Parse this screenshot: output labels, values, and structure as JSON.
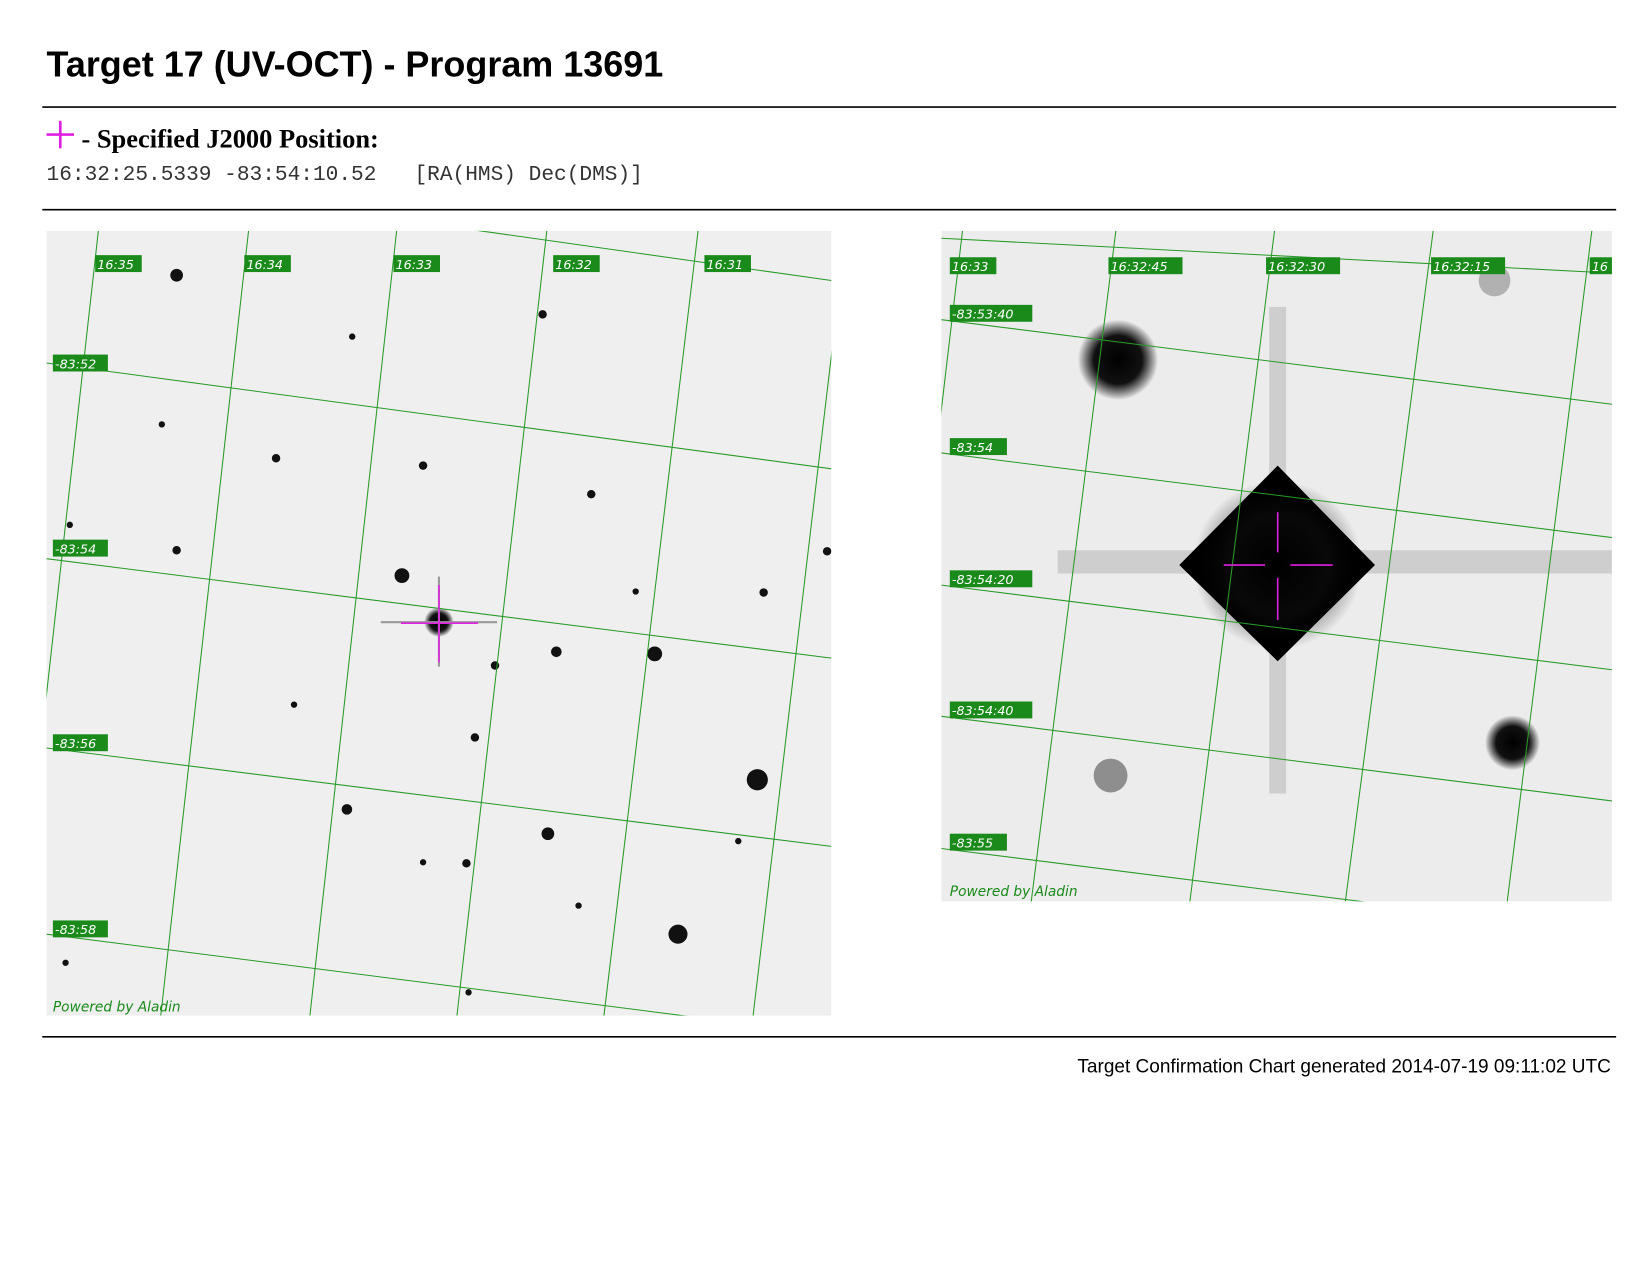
{
  "header": {
    "title": "Target 17 (UV-OCT) - Program 13691"
  },
  "position": {
    "label": "- Specified J2000 Position:",
    "coordinates": "16:32:25.5339 -83:54:10.52",
    "format": "[RA(HMS) Dec(DMS)]"
  },
  "images": [
    {
      "ra_labels": [
        "16:35",
        "16:34",
        "16:33",
        "16:32",
        "16:31"
      ],
      "dec_labels": [
        "-83:52",
        "-83:54",
        "-83:56",
        "-83:58"
      ],
      "credit": "Powered by Aladin"
    },
    {
      "ra_labels": [
        "16:33",
        "16:32:45",
        "16:32:30",
        "16:32:15",
        "16"
      ],
      "dec_labels": [
        "-83:53:40",
        "-83:54",
        "-83:54:20",
        "-83:54:40",
        "-83:55"
      ],
      "credit": "Powered by Aladin"
    }
  ],
  "footer": {
    "text": "Target Confirmation Chart generated 2014-07-19 09:11:02 UTC"
  }
}
